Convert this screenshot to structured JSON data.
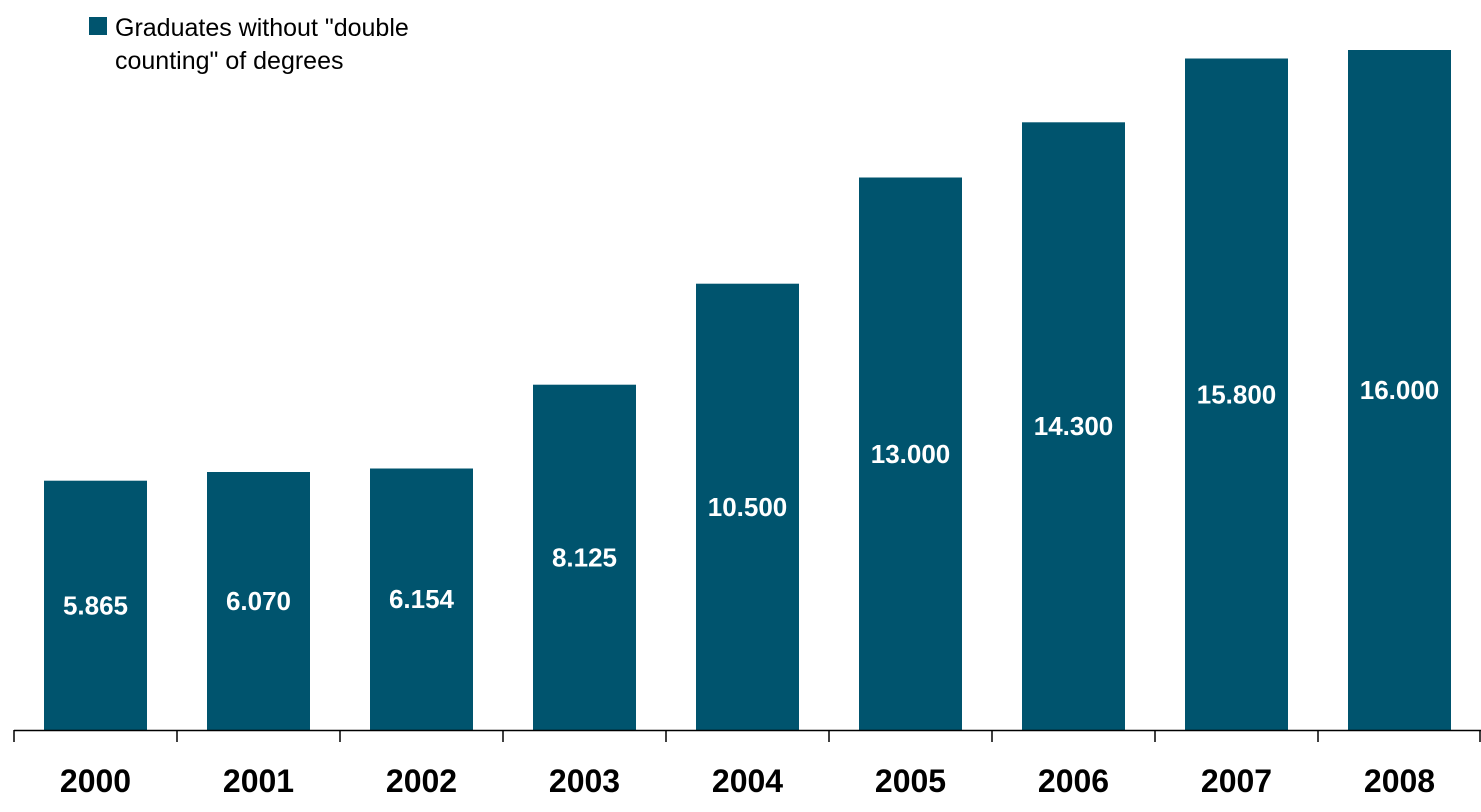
{
  "chart_data": {
    "type": "bar",
    "categories": [
      "2000",
      "2001",
      "2002",
      "2003",
      "2004",
      "2005",
      "2006",
      "2007",
      "2008"
    ],
    "series": [
      {
        "name": "Graduates without \"double counting\" of degrees",
        "values": [
          5865,
          6070,
          6154,
          8125,
          10500,
          13000,
          14300,
          15800,
          16000
        ],
        "labels": [
          "5.865",
          "6.070",
          "6.154",
          "8.125",
          "10.500",
          "13.000",
          "14.300",
          "15.800",
          "16.000"
        ]
      }
    ],
    "ylim": [
      0,
      16000
    ],
    "grid": false,
    "legend": "top-left",
    "colors": {
      "bar": "#00546e",
      "bar_label": "#ffffff",
      "axis": "#000000"
    }
  }
}
